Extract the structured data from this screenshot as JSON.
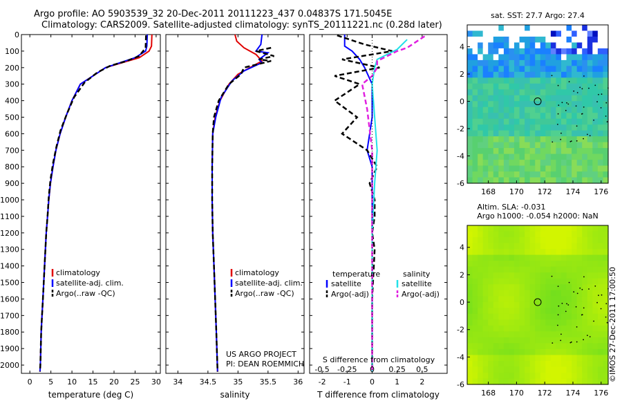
{
  "header": {
    "title_line1": "Argo profile: AO 5903539_32 20-Dec-2011 20111223_437 0.04837S 171.5045E",
    "title_line2": "Climatology: CARS2009. Satellite-adjusted climatology: synTS_20111221.nc (0.28d later)"
  },
  "colors": {
    "climatology": "#e00000",
    "satellite": "#0000ff",
    "argo": "#000000",
    "sal_satellite": "#22e0e8",
    "sal_argo": "#e020e0"
  },
  "chart_data": [
    {
      "type": "line",
      "name": "temperature",
      "xlabel": "temperature (deg C)",
      "ylabel": "",
      "xlim": [
        -2,
        31
      ],
      "ylim": [
        2050,
        0
      ],
      "xticks": [
        0,
        5,
        10,
        15,
        20,
        25,
        30
      ],
      "yticks": [
        0,
        100,
        200,
        300,
        400,
        500,
        600,
        700,
        800,
        900,
        1000,
        1100,
        1200,
        1300,
        1400,
        1500,
        1600,
        1700,
        1800,
        1900,
        2000
      ],
      "legend": [
        "climatology",
        "satellite-adj. clim.",
        "Argo(..raw -QC)"
      ],
      "series": [
        {
          "name": "climatology",
          "color": "#e00000",
          "style": "solid",
          "points": [
            [
              29,
              0
            ],
            [
              28.9,
              70
            ],
            [
              28.3,
              100
            ],
            [
              26,
              140
            ],
            [
              22,
              170
            ],
            [
              18,
              200
            ],
            [
              15,
              250
            ],
            [
              12,
              300
            ],
            [
              10,
              400
            ],
            [
              8.5,
              500
            ],
            [
              7.2,
              600
            ],
            [
              6.2,
              700
            ],
            [
              5.5,
              800
            ],
            [
              4.9,
              900
            ],
            [
              4.5,
              1000
            ],
            [
              4.2,
              1100
            ],
            [
              3.9,
              1200
            ],
            [
              3.7,
              1300
            ],
            [
              3.5,
              1400
            ],
            [
              3.3,
              1500
            ],
            [
              3.1,
              1600
            ],
            [
              2.9,
              1700
            ],
            [
              2.7,
              1800
            ],
            [
              2.6,
              1900
            ],
            [
              2.5,
              2000
            ],
            [
              2.4,
              2040
            ]
          ]
        },
        {
          "name": "satellite-adj. clim.",
          "color": "#0000ff",
          "style": "solid",
          "points": [
            [
              27.9,
              0
            ],
            [
              27.8,
              70
            ],
            [
              27.5,
              100
            ],
            [
              25,
              140
            ],
            [
              21.5,
              170
            ],
            [
              18,
              200
            ],
            [
              15,
              250
            ],
            [
              12,
              300
            ],
            [
              10,
              400
            ],
            [
              8.5,
              500
            ],
            [
              7.2,
              600
            ],
            [
              6.2,
              700
            ],
            [
              5.5,
              800
            ],
            [
              4.9,
              900
            ],
            [
              4.5,
              1000
            ],
            [
              4.2,
              1100
            ],
            [
              3.9,
              1200
            ],
            [
              3.7,
              1300
            ],
            [
              3.5,
              1400
            ],
            [
              3.3,
              1500
            ],
            [
              3.1,
              1600
            ],
            [
              2.9,
              1700
            ],
            [
              2.7,
              1800
            ],
            [
              2.6,
              1900
            ],
            [
              2.5,
              2000
            ],
            [
              2.4,
              2040
            ]
          ]
        },
        {
          "name": "Argo(..raw -QC)",
          "color": "#000000",
          "style": "dashed",
          "points": [
            [
              27.6,
              5
            ],
            [
              27.5,
              80
            ],
            [
              26,
              130
            ],
            [
              23,
              160
            ],
            [
              19,
              190
            ],
            [
              16,
              230
            ],
            [
              13,
              290
            ],
            [
              10.5,
              380
            ],
            [
              8.8,
              480
            ],
            [
              7.3,
              580
            ],
            [
              6.3,
              680
            ],
            [
              5.5,
              780
            ],
            [
              4.9,
              880
            ],
            [
              4.5,
              980
            ],
            [
              4.2,
              1100
            ],
            [
              3.9,
              1200
            ],
            [
              3.7,
              1300
            ],
            [
              3.5,
              1400
            ],
            [
              3.3,
              1500
            ],
            [
              3.1,
              1600
            ],
            [
              2.9,
              1700
            ],
            [
              2.7,
              1800
            ],
            [
              2.6,
              1900
            ],
            [
              2.5,
              2000
            ],
            [
              2.4,
              2040
            ]
          ]
        }
      ]
    },
    {
      "type": "line",
      "name": "salinity",
      "xlabel": "salinity",
      "xlim": [
        33.8,
        36.1
      ],
      "ylim": [
        2050,
        0
      ],
      "xticks": [
        34,
        34.5,
        35,
        35.5,
        36
      ],
      "legend": [
        "climatology",
        "satellite-adj. clim.",
        "Argo(..raw -QC)"
      ],
      "annotation": [
        "US ARGO PROJECT",
        "PI: DEAN ROEMMICH"
      ],
      "series": [
        {
          "name": "climatology",
          "color": "#e00000",
          "style": "solid",
          "points": [
            [
              34.95,
              0
            ],
            [
              34.98,
              40
            ],
            [
              35.1,
              80
            ],
            [
              35.3,
              120
            ],
            [
              35.4,
              160
            ],
            [
              35.2,
              200
            ],
            [
              35.0,
              240
            ],
            [
              34.85,
              300
            ],
            [
              34.7,
              400
            ],
            [
              34.62,
              500
            ],
            [
              34.58,
              600
            ],
            [
              34.57,
              800
            ],
            [
              34.57,
              1000
            ],
            [
              34.58,
              1200
            ],
            [
              34.6,
              1400
            ],
            [
              34.62,
              1600
            ],
            [
              34.64,
              1800
            ],
            [
              34.66,
              2040
            ]
          ]
        },
        {
          "name": "satellite-adj. clim.",
          "color": "#0000ff",
          "style": "solid",
          "points": [
            [
              35.4,
              0
            ],
            [
              35.38,
              60
            ],
            [
              35.3,
              100
            ],
            [
              35.5,
              110
            ],
            [
              35.35,
              150
            ],
            [
              35.4,
              170
            ],
            [
              35.1,
              220
            ],
            [
              34.9,
              280
            ],
            [
              34.72,
              380
            ],
            [
              34.63,
              500
            ],
            [
              34.58,
              600
            ],
            [
              34.57,
              800
            ],
            [
              34.57,
              1000
            ],
            [
              34.58,
              1200
            ],
            [
              34.6,
              1400
            ],
            [
              34.62,
              1600
            ],
            [
              34.64,
              1800
            ],
            [
              34.66,
              2040
            ]
          ]
        },
        {
          "name": "Argo(..raw -QC)",
          "color": "#000000",
          "style": "dashed",
          "points": [
            [
              35.55,
              80
            ],
            [
              35.3,
              100
            ],
            [
              35.6,
              130
            ],
            [
              35.35,
              150
            ],
            [
              35.55,
              160
            ],
            [
              35.1,
              200
            ],
            [
              35.05,
              240
            ],
            [
              34.85,
              300
            ],
            [
              34.68,
              400
            ],
            [
              34.6,
              500
            ],
            [
              34.58,
              600
            ],
            [
              34.57,
              800
            ],
            [
              34.57,
              1000
            ],
            [
              34.58,
              1200
            ],
            [
              34.6,
              1400
            ],
            [
              34.62,
              1600
            ],
            [
              34.64,
              1800
            ],
            [
              34.66,
              2040
            ]
          ]
        }
      ]
    },
    {
      "type": "line",
      "name": "difference",
      "xlabel": "T difference from climatology",
      "xlabel_top": "S difference from climatology",
      "xlim": [
        -2.5,
        3
      ],
      "ylim": [
        2050,
        0
      ],
      "xticks": [
        -2,
        -1,
        0,
        1,
        2
      ],
      "xticks_top_labels": [
        "-0.5",
        "-0.25",
        "0",
        "0.25",
        "0.5"
      ],
      "legend_temperature": [
        "temperature",
        "satellite",
        "Argo(-adj)"
      ],
      "legend_salinity": [
        "salinity",
        "satellite",
        "Argo(-adj)"
      ],
      "series": [
        {
          "name": "T satellite",
          "color": "#0000ff",
          "style": "solid",
          "points": [
            [
              -1.1,
              0
            ],
            [
              -1.1,
              70
            ],
            [
              -0.8,
              100
            ],
            [
              -0.5,
              150
            ],
            [
              -0.3,
              200
            ],
            [
              0,
              300
            ],
            [
              0,
              500
            ],
            [
              -0.2,
              700
            ],
            [
              0,
              800
            ],
            [
              0,
              1200
            ],
            [
              0,
              1600
            ],
            [
              0,
              2040
            ]
          ]
        },
        {
          "name": "T Argo(-adj)",
          "color": "#000000",
          "style": "dashed",
          "points": [
            [
              -1.4,
              5
            ],
            [
              -0.3,
              60
            ],
            [
              0.8,
              100
            ],
            [
              -1.2,
              150
            ],
            [
              0.3,
              200
            ],
            [
              -1.5,
              250
            ],
            [
              -0.5,
              300
            ],
            [
              -1.5,
              400
            ],
            [
              -0.6,
              500
            ],
            [
              -1.2,
              600
            ],
            [
              -0.2,
              700
            ],
            [
              0.2,
              800
            ],
            [
              -0.1,
              900
            ],
            [
              0.1,
              1000
            ],
            [
              0.1,
              1100
            ],
            [
              0,
              1200
            ],
            [
              0.1,
              1300
            ],
            [
              0,
              1600
            ],
            [
              0,
              2040
            ]
          ]
        },
        {
          "name": "S satellite",
          "color": "#22e0e8",
          "style": "solid",
          "points": [
            [
              1.4,
              30
            ],
            [
              1.0,
              90
            ],
            [
              0.2,
              150
            ],
            [
              0.1,
              200
            ],
            [
              0,
              300
            ],
            [
              0.1,
              500
            ],
            [
              0.2,
              700
            ],
            [
              0.1,
              900
            ],
            [
              0,
              1200
            ],
            [
              0,
              2040
            ]
          ]
        },
        {
          "name": "S Argo(-adj)",
          "color": "#e020e0",
          "style": "dashed",
          "points": [
            [
              2.1,
              10
            ],
            [
              1.4,
              80
            ],
            [
              1.0,
              100
            ],
            [
              0.6,
              130
            ],
            [
              0.2,
              160
            ],
            [
              0.2,
              200
            ],
            [
              0,
              250
            ],
            [
              -0.4,
              300
            ],
            [
              -0.2,
              450
            ],
            [
              0,
              700
            ],
            [
              0,
              1000
            ],
            [
              0,
              2040
            ]
          ]
        }
      ]
    },
    {
      "type": "heatmap",
      "name": "sst_map",
      "title": "sat. SST: 27.7 Argo: 27.4",
      "xlim": [
        166.5,
        176.5
      ],
      "ylim": [
        -6,
        5.6
      ],
      "xticks": [
        168,
        170,
        172,
        174,
        176
      ],
      "yticks": [
        -6,
        -4,
        -2,
        0,
        2,
        4
      ],
      "marker": [
        171.5,
        0
      ]
    },
    {
      "type": "heatmap",
      "name": "sla_map",
      "title_line1": "Altim. SLA: -0.031",
      "title_line2": "Argo h1000: -0.054 h2000: NaN",
      "xlim": [
        166.5,
        176.5
      ],
      "ylim": [
        -6,
        5.6
      ],
      "xticks": [
        168,
        170,
        172,
        174,
        176
      ],
      "yticks": [
        -6,
        -4,
        -2,
        0,
        2,
        4
      ],
      "marker": [
        171.5,
        0
      ]
    }
  ],
  "stamp": "©IMOS 27-Dec-2011 17:00:50"
}
